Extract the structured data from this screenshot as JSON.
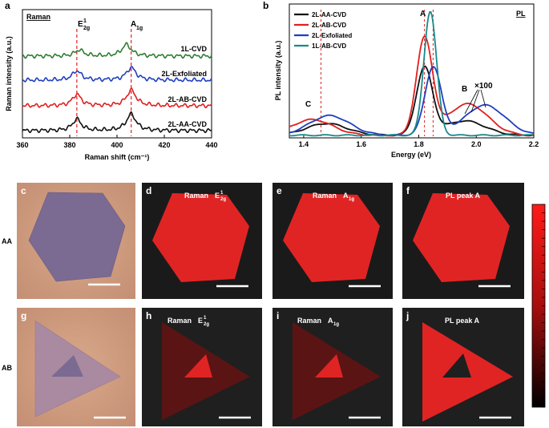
{
  "panel_letters": {
    "a": "a",
    "b": "b",
    "c": "c",
    "d": "d",
    "e": "e",
    "f": "f",
    "g": "g",
    "h": "h",
    "i": "i",
    "j": "j"
  },
  "row_labels": {
    "aa": "AA",
    "ab": "AB"
  },
  "map_labels": {
    "raman": "Raman",
    "e": "E",
    "e_sup": "1",
    "e_sub": "2g",
    "a": "A",
    "a_sub": "1g",
    "pl_peak_a": "PL peak A"
  },
  "chart_data": [
    {
      "type": "line",
      "title": "Raman",
      "xlabel": "Raman shift (cm⁻¹)",
      "ylabel": "Raman intensity (a.u.)",
      "xlim": [
        360,
        440
      ],
      "xticks": [
        "360",
        "380",
        "400",
        "420",
        "440"
      ],
      "peak_labels": {
        "e_main": "E",
        "e_sup": "1",
        "e_sub": "2g",
        "a_main": "A",
        "a_sub": "1g"
      },
      "peak_positions": [
        383,
        406
      ],
      "series": [
        {
          "name": "1L-CVD",
          "color": "#2e7d32",
          "offset": 3,
          "e2g": [
            384,
            0.3
          ],
          "a1g": [
            404,
            0.55
          ]
        },
        {
          "name": "2L-Exfoliated",
          "color": "#1f3fbf",
          "offset": 2,
          "e2g": [
            383,
            0.45
          ],
          "a1g": [
            406,
            0.6
          ]
        },
        {
          "name": "2L-AB-CVD",
          "color": "#e02020",
          "offset": 1,
          "e2g": [
            383,
            0.55
          ],
          "a1g": [
            406,
            0.75
          ]
        },
        {
          "name": "2L-AA-CVD",
          "color": "#111111",
          "offset": 0,
          "e2g": [
            383,
            0.55
          ],
          "a1g": [
            406,
            0.8
          ]
        }
      ]
    },
    {
      "type": "line",
      "title": "PL",
      "xlabel": "Energy (eV)",
      "ylabel": "PL intensity (a.u.)",
      "xlim": [
        1.35,
        2.2
      ],
      "xticks": [
        "1.4",
        "1.6",
        "1.8",
        "2.0",
        "2.2"
      ],
      "peak_labels": [
        "A",
        "B",
        "C"
      ],
      "annotation": "×100",
      "series": [
        {
          "name": "2L-AA-CVD",
          "color": "#111111",
          "c": [
            1.48,
            0.09
          ],
          "a": [
            1.82,
            0.51
          ],
          "b": [
            1.96,
            0.11
          ]
        },
        {
          "name": "2L-AB-CVD",
          "color": "#e02020",
          "c": [
            1.43,
            0.12
          ],
          "a": [
            1.82,
            0.73
          ],
          "b": [
            1.97,
            0.24
          ]
        },
        {
          "name": "2L-Exfoliated",
          "color": "#1f3fbf",
          "c": [
            1.49,
            0.15
          ],
          "a": [
            1.85,
            0.52
          ],
          "b": [
            2.03,
            0.23
          ]
        },
        {
          "name": "1L-AB-CVD",
          "color": "#1a8a8a",
          "c": [
            1.45,
            0.0
          ],
          "a": [
            1.84,
            0.95
          ],
          "b": [
            1.98,
            0.0
          ]
        }
      ]
    }
  ],
  "colorbar": {
    "top_color": "#ff1a1a",
    "bottom_color": "#000000"
  }
}
